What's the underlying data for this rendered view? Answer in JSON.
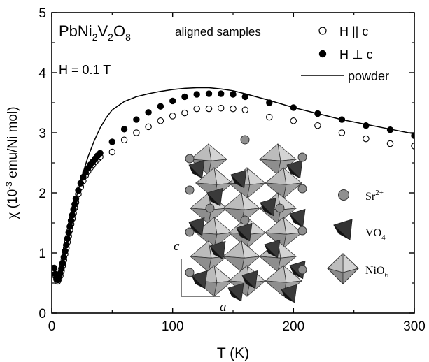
{
  "chart_data": {
    "type": "scatter",
    "xlabel": "T (K)",
    "ylabel_parts": {
      "pre": "χ (10",
      "sup": "-3",
      "post": " emu/Ni mol)"
    },
    "xlim": [
      0,
      300
    ],
    "ylim": [
      0,
      5
    ],
    "x_ticks": [
      "0",
      "100",
      "200",
      "300"
    ],
    "y_ticks": [
      "0",
      "1",
      "2",
      "3",
      "4",
      "5"
    ],
    "annotations": {
      "compound": {
        "p1": "PbNi",
        "s1": "2",
        "p2": "V",
        "s2": "2",
        "p3": "O",
        "s3": "8"
      },
      "samples": "aligned samples",
      "field": "H = 0.1 T"
    },
    "legend": {
      "placement": "top-right",
      "entries": [
        {
          "label": "H || c",
          "marker": "open-circle"
        },
        {
          "label": "H ⊥ c",
          "marker": "filled-circle"
        },
        {
          "label": "powder",
          "marker": "line"
        }
      ]
    },
    "inset": {
      "axis_c": "c",
      "axis_a": "a",
      "legend": [
        {
          "label_main": "Sr",
          "label_sup": "2+",
          "marker": "sphere"
        },
        {
          "label_main": "VO",
          "label_sub": "4",
          "marker": "dark-tetrahedron"
        },
        {
          "label_main": "NiO",
          "label_sub": "6",
          "marker": "octahedron"
        }
      ]
    },
    "series": [
      {
        "name": "H || c",
        "marker": "open",
        "points": [
          [
            2,
            0.72
          ],
          [
            3,
            0.62
          ],
          [
            4,
            0.56
          ],
          [
            5,
            0.53
          ],
          [
            6,
            0.57
          ],
          [
            7,
            0.62
          ],
          [
            8,
            0.7
          ],
          [
            9,
            0.79
          ],
          [
            10,
            0.88
          ],
          [
            11,
            0.98
          ],
          [
            12,
            1.08
          ],
          [
            13,
            1.18
          ],
          [
            14,
            1.28
          ],
          [
            15,
            1.38
          ],
          [
            16,
            1.48
          ],
          [
            17,
            1.57
          ],
          [
            18,
            1.66
          ],
          [
            19,
            1.75
          ],
          [
            20,
            1.84
          ],
          [
            22,
            1.98
          ],
          [
            24,
            2.1
          ],
          [
            26,
            2.2
          ],
          [
            28,
            2.29
          ],
          [
            30,
            2.36
          ],
          [
            32,
            2.42
          ],
          [
            34,
            2.47
          ],
          [
            36,
            2.52
          ],
          [
            38,
            2.56
          ],
          [
            40,
            2.6
          ],
          [
            50,
            2.68
          ],
          [
            60,
            2.88
          ],
          [
            70,
            3.0
          ],
          [
            80,
            3.1
          ],
          [
            90,
            3.2
          ],
          [
            100,
            3.28
          ],
          [
            110,
            3.33
          ],
          [
            120,
            3.4
          ],
          [
            130,
            3.4
          ],
          [
            140,
            3.41
          ],
          [
            150,
            3.4
          ],
          [
            160,
            3.38
          ],
          [
            180,
            3.26
          ],
          [
            200,
            3.2
          ],
          [
            220,
            3.12
          ],
          [
            240,
            3.0
          ],
          [
            260,
            2.9
          ],
          [
            280,
            2.82
          ],
          [
            300,
            2.78
          ]
        ]
      },
      {
        "name": "H ⊥ c",
        "marker": "filled",
        "points": [
          [
            2,
            0.75
          ],
          [
            3,
            0.65
          ],
          [
            4,
            0.58
          ],
          [
            5,
            0.55
          ],
          [
            6,
            0.6
          ],
          [
            7,
            0.66
          ],
          [
            8,
            0.74
          ],
          [
            9,
            0.83
          ],
          [
            10,
            0.93
          ],
          [
            11,
            1.03
          ],
          [
            12,
            1.13
          ],
          [
            13,
            1.24
          ],
          [
            14,
            1.34
          ],
          [
            15,
            1.44
          ],
          [
            16,
            1.54
          ],
          [
            17,
            1.63
          ],
          [
            18,
            1.72
          ],
          [
            19,
            1.81
          ],
          [
            20,
            1.9
          ],
          [
            22,
            2.04
          ],
          [
            24,
            2.16
          ],
          [
            26,
            2.26
          ],
          [
            28,
            2.34
          ],
          [
            30,
            2.41
          ],
          [
            32,
            2.47
          ],
          [
            34,
            2.52
          ],
          [
            36,
            2.57
          ],
          [
            38,
            2.62
          ],
          [
            40,
            2.66
          ],
          [
            50,
            2.85
          ],
          [
            60,
            3.06
          ],
          [
            70,
            3.22
          ],
          [
            80,
            3.34
          ],
          [
            90,
            3.44
          ],
          [
            100,
            3.53
          ],
          [
            110,
            3.6
          ],
          [
            120,
            3.64
          ],
          [
            130,
            3.65
          ],
          [
            140,
            3.65
          ],
          [
            150,
            3.64
          ],
          [
            160,
            3.6
          ],
          [
            180,
            3.5
          ],
          [
            200,
            3.42
          ],
          [
            220,
            3.32
          ],
          [
            240,
            3.22
          ],
          [
            260,
            3.12
          ],
          [
            280,
            3.05
          ],
          [
            300,
            2.95
          ]
        ]
      },
      {
        "name": "powder",
        "marker": "line",
        "points": [
          [
            1,
            0.8
          ],
          [
            3,
            0.62
          ],
          [
            5,
            0.6
          ],
          [
            7,
            0.68
          ],
          [
            9,
            0.82
          ],
          [
            11,
            1.0
          ],
          [
            13,
            1.2
          ],
          [
            15,
            1.42
          ],
          [
            18,
            1.72
          ],
          [
            21,
            1.98
          ],
          [
            25,
            2.28
          ],
          [
            30,
            2.6
          ],
          [
            35,
            2.86
          ],
          [
            40,
            3.08
          ],
          [
            45,
            3.25
          ],
          [
            50,
            3.38
          ],
          [
            60,
            3.52
          ],
          [
            70,
            3.6
          ],
          [
            80,
            3.65
          ],
          [
            90,
            3.69
          ],
          [
            100,
            3.72
          ],
          [
            110,
            3.74
          ],
          [
            120,
            3.75
          ],
          [
            130,
            3.75
          ],
          [
            140,
            3.73
          ],
          [
            150,
            3.7
          ],
          [
            160,
            3.65
          ],
          [
            180,
            3.54
          ],
          [
            200,
            3.42
          ],
          [
            220,
            3.32
          ],
          [
            240,
            3.22
          ],
          [
            260,
            3.14
          ],
          [
            280,
            3.06
          ],
          [
            300,
            2.98
          ]
        ]
      }
    ]
  }
}
